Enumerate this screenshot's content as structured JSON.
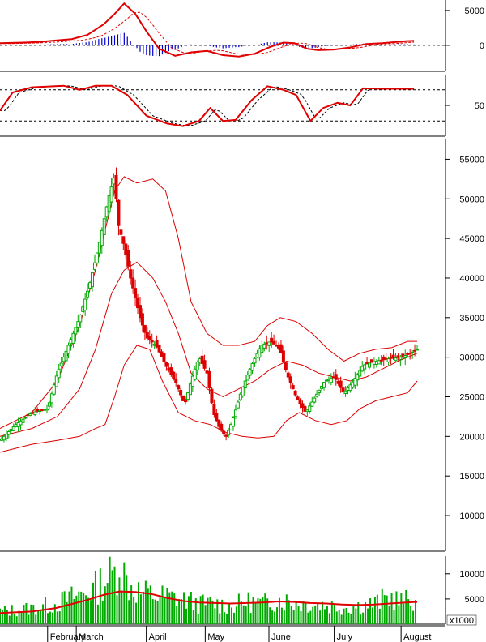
{
  "chart_data": [
    {
      "panel": "macd",
      "type": "line",
      "y_ticks": [
        0,
        5000
      ],
      "ylim": [
        -2800,
        6500
      ],
      "colors": {
        "macd": "#e00000",
        "signal": "#e00000",
        "histogram": "#0000cc",
        "zero_line": "#000000"
      },
      "note_line_styles": {
        "macd": "solid",
        "signal": "dashed"
      },
      "series": [
        {
          "values_day_macd": [
            [
              0,
              300
            ],
            [
              15,
              400
            ],
            [
              25,
              500
            ],
            [
              35,
              700
            ],
            [
              45,
              900
            ],
            [
              55,
              1500
            ],
            [
              65,
              3000
            ],
            [
              72,
              4500
            ],
            [
              78,
              6000
            ],
            [
              85,
              4500
            ],
            [
              92,
              2000
            ],
            [
              100,
              -500
            ],
            [
              110,
              -1500
            ],
            [
              120,
              -1000
            ],
            [
              130,
              -800
            ],
            [
              140,
              -1400
            ],
            [
              150,
              -1600
            ],
            [
              160,
              -1200
            ],
            [
              170,
              -200
            ],
            [
              178,
              400
            ],
            [
              185,
              300
            ],
            [
              193,
              -500
            ],
            [
              200,
              -700
            ],
            [
              210,
              -600
            ],
            [
              220,
              -300
            ],
            [
              230,
              200
            ],
            [
              240,
              300
            ],
            [
              255,
              600
            ],
            [
              260,
              650
            ]
          ]
        }
      ]
    },
    {
      "panel": "stochastic",
      "type": "line",
      "y_ticks": [
        50
      ],
      "ylim": [
        0,
        100
      ],
      "reference_levels": [
        80,
        20
      ],
      "colors": {
        "k_line": "#e00000",
        "d_line": "#000000"
      },
      "values_day": [
        [
          0,
          40
        ],
        [
          8,
          75
        ],
        [
          20,
          85
        ],
        [
          40,
          88
        ],
        [
          50,
          80
        ],
        [
          60,
          88
        ],
        [
          70,
          88
        ],
        [
          80,
          70
        ],
        [
          92,
          30
        ],
        [
          105,
          15
        ],
        [
          115,
          10
        ],
        [
          125,
          20
        ],
        [
          132,
          45
        ],
        [
          140,
          20
        ],
        [
          148,
          22
        ],
        [
          158,
          60
        ],
        [
          168,
          87
        ],
        [
          178,
          80
        ],
        [
          186,
          70
        ],
        [
          195,
          20
        ],
        [
          203,
          45
        ],
        [
          212,
          55
        ],
        [
          220,
          50
        ],
        [
          228,
          83
        ],
        [
          240,
          82
        ],
        [
          250,
          82
        ],
        [
          260,
          82
        ]
      ]
    },
    {
      "panel": "price",
      "type": "candlestick",
      "y_ticks": [
        10000,
        15000,
        20000,
        25000,
        30000,
        35000,
        40000,
        45000,
        50000,
        55000
      ],
      "ylim": [
        5500,
        57500
      ],
      "colors": {
        "up": "#00aa00",
        "down": "#dd0000",
        "bands": "#dd0000"
      },
      "close_path_day": [
        [
          0,
          19500
        ],
        [
          10,
          21500
        ],
        [
          20,
          23000
        ],
        [
          30,
          23500
        ],
        [
          36,
          28000
        ],
        [
          42,
          31000
        ],
        [
          50,
          35000
        ],
        [
          56,
          39000
        ],
        [
          62,
          44000
        ],
        [
          68,
          50000
        ],
        [
          72,
          53000
        ],
        [
          74,
          47000
        ],
        [
          78,
          44000
        ],
        [
          82,
          40000
        ],
        [
          88,
          35000
        ],
        [
          92,
          32500
        ],
        [
          98,
          31500
        ],
        [
          104,
          29000
        ],
        [
          110,
          27000
        ],
        [
          116,
          24000
        ],
        [
          120,
          27000
        ],
        [
          125,
          30000
        ],
        [
          130,
          28000
        ],
        [
          134,
          23000
        ],
        [
          138,
          21000
        ],
        [
          142,
          20000
        ],
        [
          146,
          22000
        ],
        [
          152,
          26000
        ],
        [
          158,
          29000
        ],
        [
          164,
          31500
        ],
        [
          170,
          32000
        ],
        [
          176,
          31000
        ],
        [
          180,
          28000
        ],
        [
          186,
          25000
        ],
        [
          192,
          23000
        ],
        [
          198,
          25000
        ],
        [
          204,
          27000
        ],
        [
          210,
          27500
        ],
        [
          216,
          25500
        ],
        [
          222,
          27000
        ],
        [
          228,
          29000
        ],
        [
          236,
          29500
        ],
        [
          244,
          29800
        ],
        [
          252,
          30000
        ],
        [
          258,
          30500
        ],
        [
          262,
          31000
        ]
      ],
      "bollinger_upper_day": [
        [
          0,
          21000
        ],
        [
          20,
          23000
        ],
        [
          36,
          27000
        ],
        [
          50,
          34000
        ],
        [
          60,
          41000
        ],
        [
          66,
          46000
        ],
        [
          72,
          51000
        ],
        [
          78,
          52800
        ],
        [
          86,
          52000
        ],
        [
          96,
          52500
        ],
        [
          104,
          51000
        ],
        [
          112,
          45000
        ],
        [
          120,
          37000
        ],
        [
          130,
          33000
        ],
        [
          140,
          31500
        ],
        [
          150,
          31500
        ],
        [
          160,
          32000
        ],
        [
          168,
          34000
        ],
        [
          176,
          35000
        ],
        [
          186,
          34500
        ],
        [
          196,
          33000
        ],
        [
          206,
          31000
        ],
        [
          216,
          29500
        ],
        [
          226,
          30500
        ],
        [
          236,
          31000
        ],
        [
          246,
          31200
        ],
        [
          256,
          32000
        ],
        [
          262,
          32000
        ]
      ],
      "bollinger_middle_day": [
        [
          0,
          20000
        ],
        [
          20,
          21000
        ],
        [
          36,
          22500
        ],
        [
          50,
          26000
        ],
        [
          60,
          31000
        ],
        [
          70,
          38000
        ],
        [
          78,
          41000
        ],
        [
          86,
          42000
        ],
        [
          96,
          40000
        ],
        [
          104,
          37000
        ],
        [
          112,
          33000
        ],
        [
          120,
          28000
        ],
        [
          130,
          26000
        ],
        [
          140,
          25000
        ],
        [
          150,
          26000
        ],
        [
          160,
          27000
        ],
        [
          170,
          28500
        ],
        [
          180,
          29500
        ],
        [
          190,
          29000
        ],
        [
          200,
          28000
        ],
        [
          210,
          27500
        ],
        [
          220,
          27000
        ],
        [
          230,
          27500
        ],
        [
          240,
          28500
        ],
        [
          250,
          29500
        ],
        [
          262,
          30500
        ]
      ],
      "bollinger_lower_day": [
        [
          0,
          18000
        ],
        [
          20,
          19000
        ],
        [
          36,
          19500
        ],
        [
          50,
          20000
        ],
        [
          60,
          21000
        ],
        [
          66,
          21500
        ],
        [
          72,
          25000
        ],
        [
          78,
          29000
        ],
        [
          86,
          31500
        ],
        [
          94,
          31000
        ],
        [
          102,
          27000
        ],
        [
          112,
          23000
        ],
        [
          122,
          22000
        ],
        [
          132,
          21500
        ],
        [
          142,
          20500
        ],
        [
          152,
          20000
        ],
        [
          162,
          19800
        ],
        [
          172,
          20000
        ],
        [
          180,
          22000
        ],
        [
          188,
          23000
        ],
        [
          198,
          22000
        ],
        [
          208,
          21500
        ],
        [
          218,
          22000
        ],
        [
          226,
          23500
        ],
        [
          236,
          24500
        ],
        [
          246,
          25000
        ],
        [
          256,
          25500
        ],
        [
          262,
          27000
        ]
      ]
    },
    {
      "panel": "volume",
      "type": "bar",
      "unit_label": "x1000",
      "y_ticks": [
        5000,
        10000
      ],
      "ylim": [
        0,
        13500
      ],
      "colors": {
        "bars": "#00aa00",
        "moving_average": "#e00000"
      },
      "volume_path_day": [
        [
          0,
          2800
        ],
        [
          20,
          3500
        ],
        [
          35,
          4500
        ],
        [
          50,
          6500
        ],
        [
          60,
          8000
        ],
        [
          66,
          10000
        ],
        [
          72,
          11000
        ],
        [
          75,
          14000
        ],
        [
          80,
          9000
        ],
        [
          88,
          7000
        ],
        [
          95,
          6500
        ],
        [
          105,
          6000
        ],
        [
          115,
          5500
        ],
        [
          125,
          4500
        ],
        [
          135,
          4500
        ],
        [
          145,
          4000
        ],
        [
          155,
          5000
        ],
        [
          165,
          4500
        ],
        [
          175,
          5500
        ],
        [
          185,
          4800
        ],
        [
          195,
          4500
        ],
        [
          205,
          4200
        ],
        [
          215,
          3800
        ],
        [
          225,
          4000
        ],
        [
          235,
          4500
        ],
        [
          245,
          6000
        ],
        [
          252,
          5000
        ],
        [
          262,
          5500
        ]
      ],
      "moving_average_day": [
        [
          0,
          2200
        ],
        [
          20,
          2500
        ],
        [
          35,
          3200
        ],
        [
          45,
          4000
        ],
        [
          55,
          4800
        ],
        [
          65,
          5800
        ],
        [
          75,
          6500
        ],
        [
          85,
          6400
        ],
        [
          95,
          6000
        ],
        [
          105,
          5200
        ],
        [
          115,
          4600
        ],
        [
          125,
          4300
        ],
        [
          135,
          4200
        ],
        [
          145,
          4100
        ],
        [
          155,
          4200
        ],
        [
          165,
          4300
        ],
        [
          175,
          4500
        ],
        [
          185,
          4400
        ],
        [
          195,
          4200
        ],
        [
          205,
          4100
        ],
        [
          215,
          3900
        ],
        [
          225,
          3800
        ],
        [
          235,
          3900
        ],
        [
          245,
          4100
        ],
        [
          255,
          4300
        ],
        [
          262,
          4400
        ]
      ]
    }
  ],
  "x_axis": {
    "labels": [
      "February",
      "March",
      "April",
      "May",
      "June",
      "July",
      "August"
    ],
    "label_days": [
      36,
      54,
      98,
      135,
      175,
      216,
      258
    ]
  }
}
